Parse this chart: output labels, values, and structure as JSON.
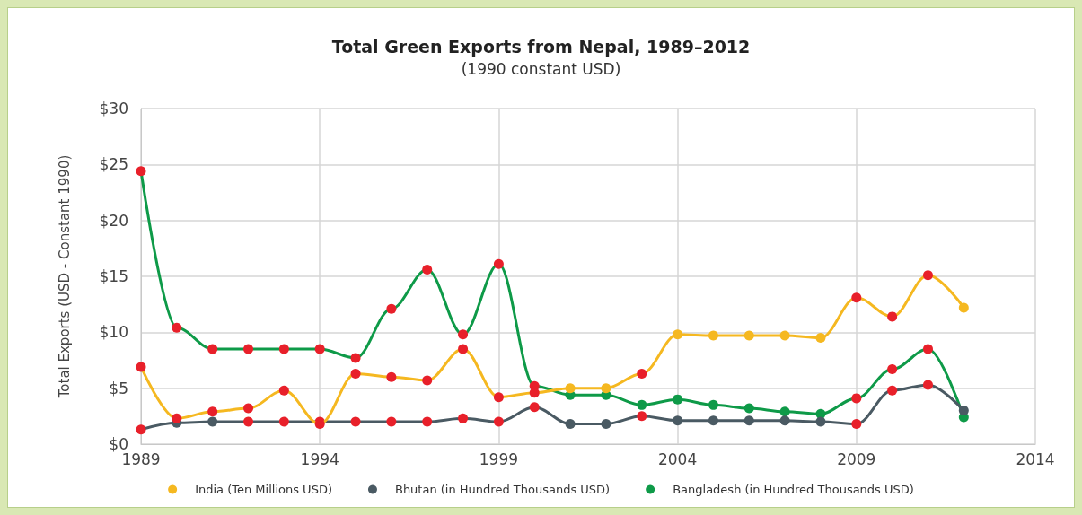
{
  "chart_data": {
    "type": "line",
    "title": "Total Green Exports from Nepal, 1989–2012",
    "subtitle": "(1990 constant USD)",
    "ylabel": "Total Exports (USD - Constant 1990)",
    "x": [
      1989,
      1990,
      1991,
      1992,
      1993,
      1994,
      1995,
      1996,
      1997,
      1998,
      1999,
      2000,
      2001,
      2002,
      2003,
      2004,
      2005,
      2006,
      2007,
      2008,
      2009,
      2010,
      2011,
      2012
    ],
    "series": [
      {
        "name": "India (Ten Millions USD)",
        "color": "#f5b820",
        "values": [
          6.9,
          2.3,
          2.9,
          3.2,
          4.8,
          1.8,
          6.3,
          6.0,
          5.7,
          8.5,
          4.2,
          4.6,
          5.0,
          5.0,
          6.3,
          9.8,
          9.7,
          9.7,
          9.7,
          9.5,
          13.1,
          11.4,
          15.1,
          12.2
        ],
        "colors": [
          "#e8202a",
          "#e8202a",
          "#e8202a",
          "#e8202a",
          "#e8202a",
          "#e8202a",
          "#e8202a",
          "#e8202a",
          "#e8202a",
          "#e8202a",
          "#e8202a",
          "#e8202a",
          "#f5b820",
          "#f5b820",
          "#e8202a",
          "#f5b820",
          "#f5b820",
          "#f5b820",
          "#f5b820",
          "#f5b820",
          "#e8202a",
          "#e8202a",
          "#e8202a",
          "#f5b820"
        ]
      },
      {
        "name": "Bhutan (in Hundred Thousands USD)",
        "color": "#4a5a63",
        "values": [
          1.3,
          1.9,
          2.0,
          2.0,
          2.0,
          2.0,
          2.0,
          2.0,
          2.0,
          2.3,
          2.0,
          3.3,
          1.8,
          1.8,
          2.5,
          2.1,
          2.1,
          2.1,
          2.1,
          2.0,
          1.8,
          4.8,
          5.3,
          3.0
        ],
        "colors": [
          "#e8202a",
          "#4a5a63",
          "#4a5a63",
          "#e8202a",
          "#e8202a",
          "#e8202a",
          "#e8202a",
          "#e8202a",
          "#e8202a",
          "#e8202a",
          "#e8202a",
          "#e8202a",
          "#4a5a63",
          "#4a5a63",
          "#e8202a",
          "#4a5a63",
          "#4a5a63",
          "#4a5a63",
          "#4a5a63",
          "#4a5a63",
          "#e8202a",
          "#e8202a",
          "#e8202a",
          "#4a5a63"
        ]
      },
      {
        "name": "Bangladesh (in Hundred Thousands USD)",
        "color": "#0e9a48",
        "values": [
          24.4,
          10.4,
          8.5,
          8.5,
          8.5,
          8.5,
          7.7,
          12.1,
          15.6,
          9.8,
          16.1,
          5.2,
          4.4,
          4.4,
          3.5,
          4.0,
          3.5,
          3.2,
          2.9,
          2.7,
          4.1,
          6.7,
          8.5,
          2.4
        ],
        "colors": [
          "#e8202a",
          "#e8202a",
          "#e8202a",
          "#e8202a",
          "#e8202a",
          "#e8202a",
          "#e8202a",
          "#e8202a",
          "#e8202a",
          "#e8202a",
          "#e8202a",
          "#e8202a",
          "#0e9a48",
          "#0e9a48",
          "#0e9a48",
          "#0e9a48",
          "#0e9a48",
          "#0e9a48",
          "#0e9a48",
          "#0e9a48",
          "#e8202a",
          "#e8202a",
          "#e8202a",
          "#0e9a48"
        ]
      }
    ],
    "xlim": [
      1989,
      2014
    ],
    "xticks": [
      1989,
      1994,
      1999,
      2004,
      2009,
      2014
    ],
    "ylim": [
      0,
      30
    ],
    "yticks": [
      {
        "value": 0,
        "label": "$0"
      },
      {
        "value": 5,
        "label": "$5"
      },
      {
        "value": 10,
        "label": "$10"
      },
      {
        "value": 15,
        "label": "$15"
      },
      {
        "value": 20,
        "label": "$20"
      },
      {
        "value": 25,
        "label": "$25"
      },
      {
        "value": 30,
        "label": "$30"
      }
    ],
    "grid": true,
    "legend": "bottom",
    "marker": "circle",
    "line_style": "solid"
  }
}
